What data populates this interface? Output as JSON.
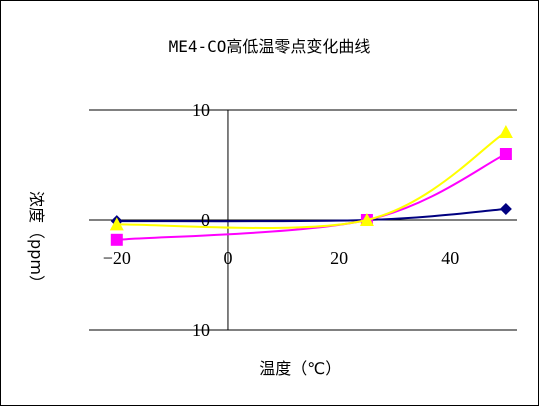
{
  "chart_data": {
    "type": "line",
    "title": "ME4-CO高低温零点变化曲线",
    "xlabel": "温度（℃）",
    "ylabel": "浓度（ppm）",
    "xlim": [
      -25,
      52
    ],
    "ylim": [
      -10,
      10
    ],
    "x_ticks": [
      -20,
      0,
      20,
      40
    ],
    "y_ticks": [
      10,
      0,
      -10
    ],
    "x_tick_labels": [
      "−20",
      "0",
      "20",
      "40"
    ],
    "y_tick_labels": [
      "10",
      "0",
      "−10"
    ],
    "grid": "horizontal",
    "series": [
      {
        "color": "#000080",
        "marker": "diamond",
        "x": [
          -20,
          25,
          50
        ],
        "y": [
          -0.1,
          0,
          1.0
        ]
      },
      {
        "color": "#ff00ff",
        "marker": "square",
        "x": [
          -20,
          25,
          50
        ],
        "y": [
          -1.8,
          0,
          6.0
        ]
      },
      {
        "color": "#ffff00",
        "marker": "triangle",
        "x": [
          -20,
          25,
          50
        ],
        "y": [
          -0.4,
          0,
          8.0
        ]
      }
    ]
  }
}
